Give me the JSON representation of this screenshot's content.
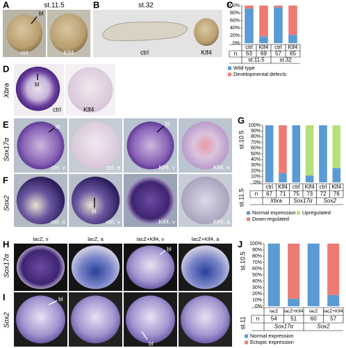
{
  "panels": {
    "A": {
      "letter": "A",
      "stage": "st.11.5",
      "labels": [
        "ctrl",
        "Klf4"
      ],
      "marker": "bl"
    },
    "B": {
      "letter": "B",
      "stage": "st.32",
      "labels": [
        "ctrl",
        "Klf4"
      ]
    },
    "D": {
      "letter": "D",
      "gene": "Xbra",
      "labels": [
        "ctrl",
        "Klf4"
      ],
      "marker": "bl"
    },
    "E": {
      "letter": "E",
      "gene": "Sox17α",
      "labels": [
        "ctrl, v",
        "ctrl, a",
        "Klf4, v",
        "Klf4, a"
      ],
      "markers": [
        "bl",
        "bl"
      ]
    },
    "F": {
      "letter": "F",
      "gene": "Sox2",
      "labels": [
        "ctrl, a",
        "ctrl, v",
        "Klf4, v",
        "Klf4, a"
      ],
      "marker": "bl"
    },
    "H": {
      "letter": "H",
      "gene": "Sox17α",
      "labels": [
        "lacZ, v",
        "lacZ, a",
        "lacZ+Klf4, v",
        "lacZ+Klf4, a"
      ],
      "marker": "bl"
    },
    "I": {
      "letter": "I",
      "gene": "Sox2",
      "markers": [
        "bl",
        "bl"
      ]
    }
  },
  "chart_data": [
    {
      "type": "bar",
      "label": "C",
      "categories": [
        "ctrl",
        "Klf4",
        "ctrl",
        "Klf4"
      ],
      "series": [
        {
          "name": "Wild type",
          "color": "#5b9bd5",
          "values": [
            92,
            18,
            95,
            22
          ]
        },
        {
          "name": "Developmental defects",
          "color": "#ec7b74",
          "values": [
            8,
            82,
            5,
            78
          ]
        }
      ],
      "ylim": [
        0,
        100
      ],
      "yticks": [
        {
          "value": 0,
          "label": "0%"
        },
        {
          "value": 20,
          "label": "20%"
        },
        {
          "value": 40,
          "label": "40%"
        },
        {
          "value": 60,
          "label": "60%"
        },
        {
          "value": 80,
          "label": "80%"
        },
        {
          "value": 100,
          "label": "100%"
        }
      ],
      "n_label": "n",
      "n": [
        "63",
        "69",
        "57",
        "65"
      ],
      "groups": [
        "st.11.5",
        "st.32"
      ]
    },
    {
      "type": "bar",
      "label": "G",
      "categories": [
        "ctrl",
        "Klf4",
        "ctrl",
        "Klf4",
        "ctrl",
        "Klf4"
      ],
      "series": [
        {
          "name": "Normal expression",
          "color": "#5b9bd5",
          "values": [
            100,
            16,
            100,
            12,
            100,
            25
          ]
        },
        {
          "name": "Upregulated",
          "color": "#b5e07a",
          "values": [
            0,
            0,
            0,
            88,
            0,
            75
          ]
        },
        {
          "name": "Down-regulated",
          "color": "#ec7b74",
          "values": [
            0,
            84,
            0,
            0,
            0,
            0
          ]
        }
      ],
      "ylim": [
        0,
        100
      ],
      "yticks": [
        {
          "value": 0,
          "label": "0%"
        },
        {
          "value": 10,
          "label": "10%"
        },
        {
          "value": 20,
          "label": "20%"
        },
        {
          "value": 30,
          "label": "30%"
        },
        {
          "value": 40,
          "label": "40%"
        },
        {
          "value": 50,
          "label": "50%"
        },
        {
          "value": 60,
          "label": "60%"
        },
        {
          "value": 70,
          "label": "70%"
        },
        {
          "value": 80,
          "label": "80%"
        },
        {
          "value": 90,
          "label": "90%"
        },
        {
          "value": 100,
          "label": "100%"
        }
      ],
      "n_label": "n",
      "n": [
        "67",
        "71",
        "75",
        "73",
        "72",
        "76"
      ],
      "groups": [
        "Xbra",
        "Sox17α",
        "Sox2"
      ],
      "stage_labels": [
        "st.10.5",
        "st.11.5"
      ]
    },
    {
      "type": "bar",
      "label": "J",
      "categories": [
        "lacZ",
        "lacZ+Klf4",
        "lacZ",
        "lacZ+Klf4"
      ],
      "series": [
        {
          "name": "Normal expression",
          "color": "#5b9bd5",
          "values": [
            100,
            12,
            100,
            18
          ]
        },
        {
          "name": "Ectopic expression",
          "color": "#ec7b74",
          "values": [
            0,
            88,
            0,
            82
          ]
        }
      ],
      "ylim": [
        0,
        100
      ],
      "yticks": [
        {
          "value": 0,
          "label": "0%"
        },
        {
          "value": 10,
          "label": "10%"
        },
        {
          "value": 20,
          "label": "20%"
        },
        {
          "value": 30,
          "label": "30%"
        },
        {
          "value": 40,
          "label": "40%"
        },
        {
          "value": 50,
          "label": "50%"
        },
        {
          "value": 60,
          "label": "60%"
        },
        {
          "value": 70,
          "label": "70%"
        },
        {
          "value": 80,
          "label": "80%"
        },
        {
          "value": 90,
          "label": "90%"
        },
        {
          "value": 100,
          "label": "100%"
        }
      ],
      "n_label": "n",
      "n": [
        "54",
        "51",
        "60",
        "57"
      ],
      "groups": [
        "Sox17α",
        "Sox2"
      ],
      "stage_labels": [
        "st.10.5",
        "st.11"
      ]
    }
  ]
}
